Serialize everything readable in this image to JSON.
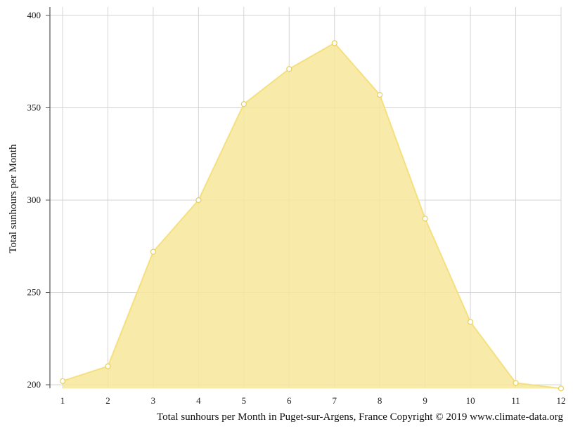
{
  "chart_data": {
    "type": "area",
    "ylabel": "Total sunhours per Month",
    "caption": "Total sunhours per Month in Puget-sur-Argens, France Copyright © 2019 www.climate-data.org",
    "x": [
      1,
      2,
      3,
      4,
      5,
      6,
      7,
      8,
      9,
      10,
      11,
      12
    ],
    "x_ticks": [
      "1",
      "2",
      "3",
      "4",
      "5",
      "6",
      "7",
      "8",
      "9",
      "10",
      "11",
      "12"
    ],
    "y_ticks": [
      "200",
      "250",
      "300",
      "350",
      "400"
    ],
    "ylim": [
      200,
      400
    ],
    "grid": true,
    "series": [
      {
        "values": [
          202,
          210,
          272,
          300,
          352,
          371,
          385,
          357,
          290,
          234,
          201,
          198
        ]
      }
    ],
    "colors": {
      "fill": "#f7e69a",
      "line": "#f5e07f",
      "marker_fill": "#ffffff",
      "marker_stroke": "#e8cf5a",
      "grid": "#d4d4d4",
      "axis": "#555555"
    }
  }
}
